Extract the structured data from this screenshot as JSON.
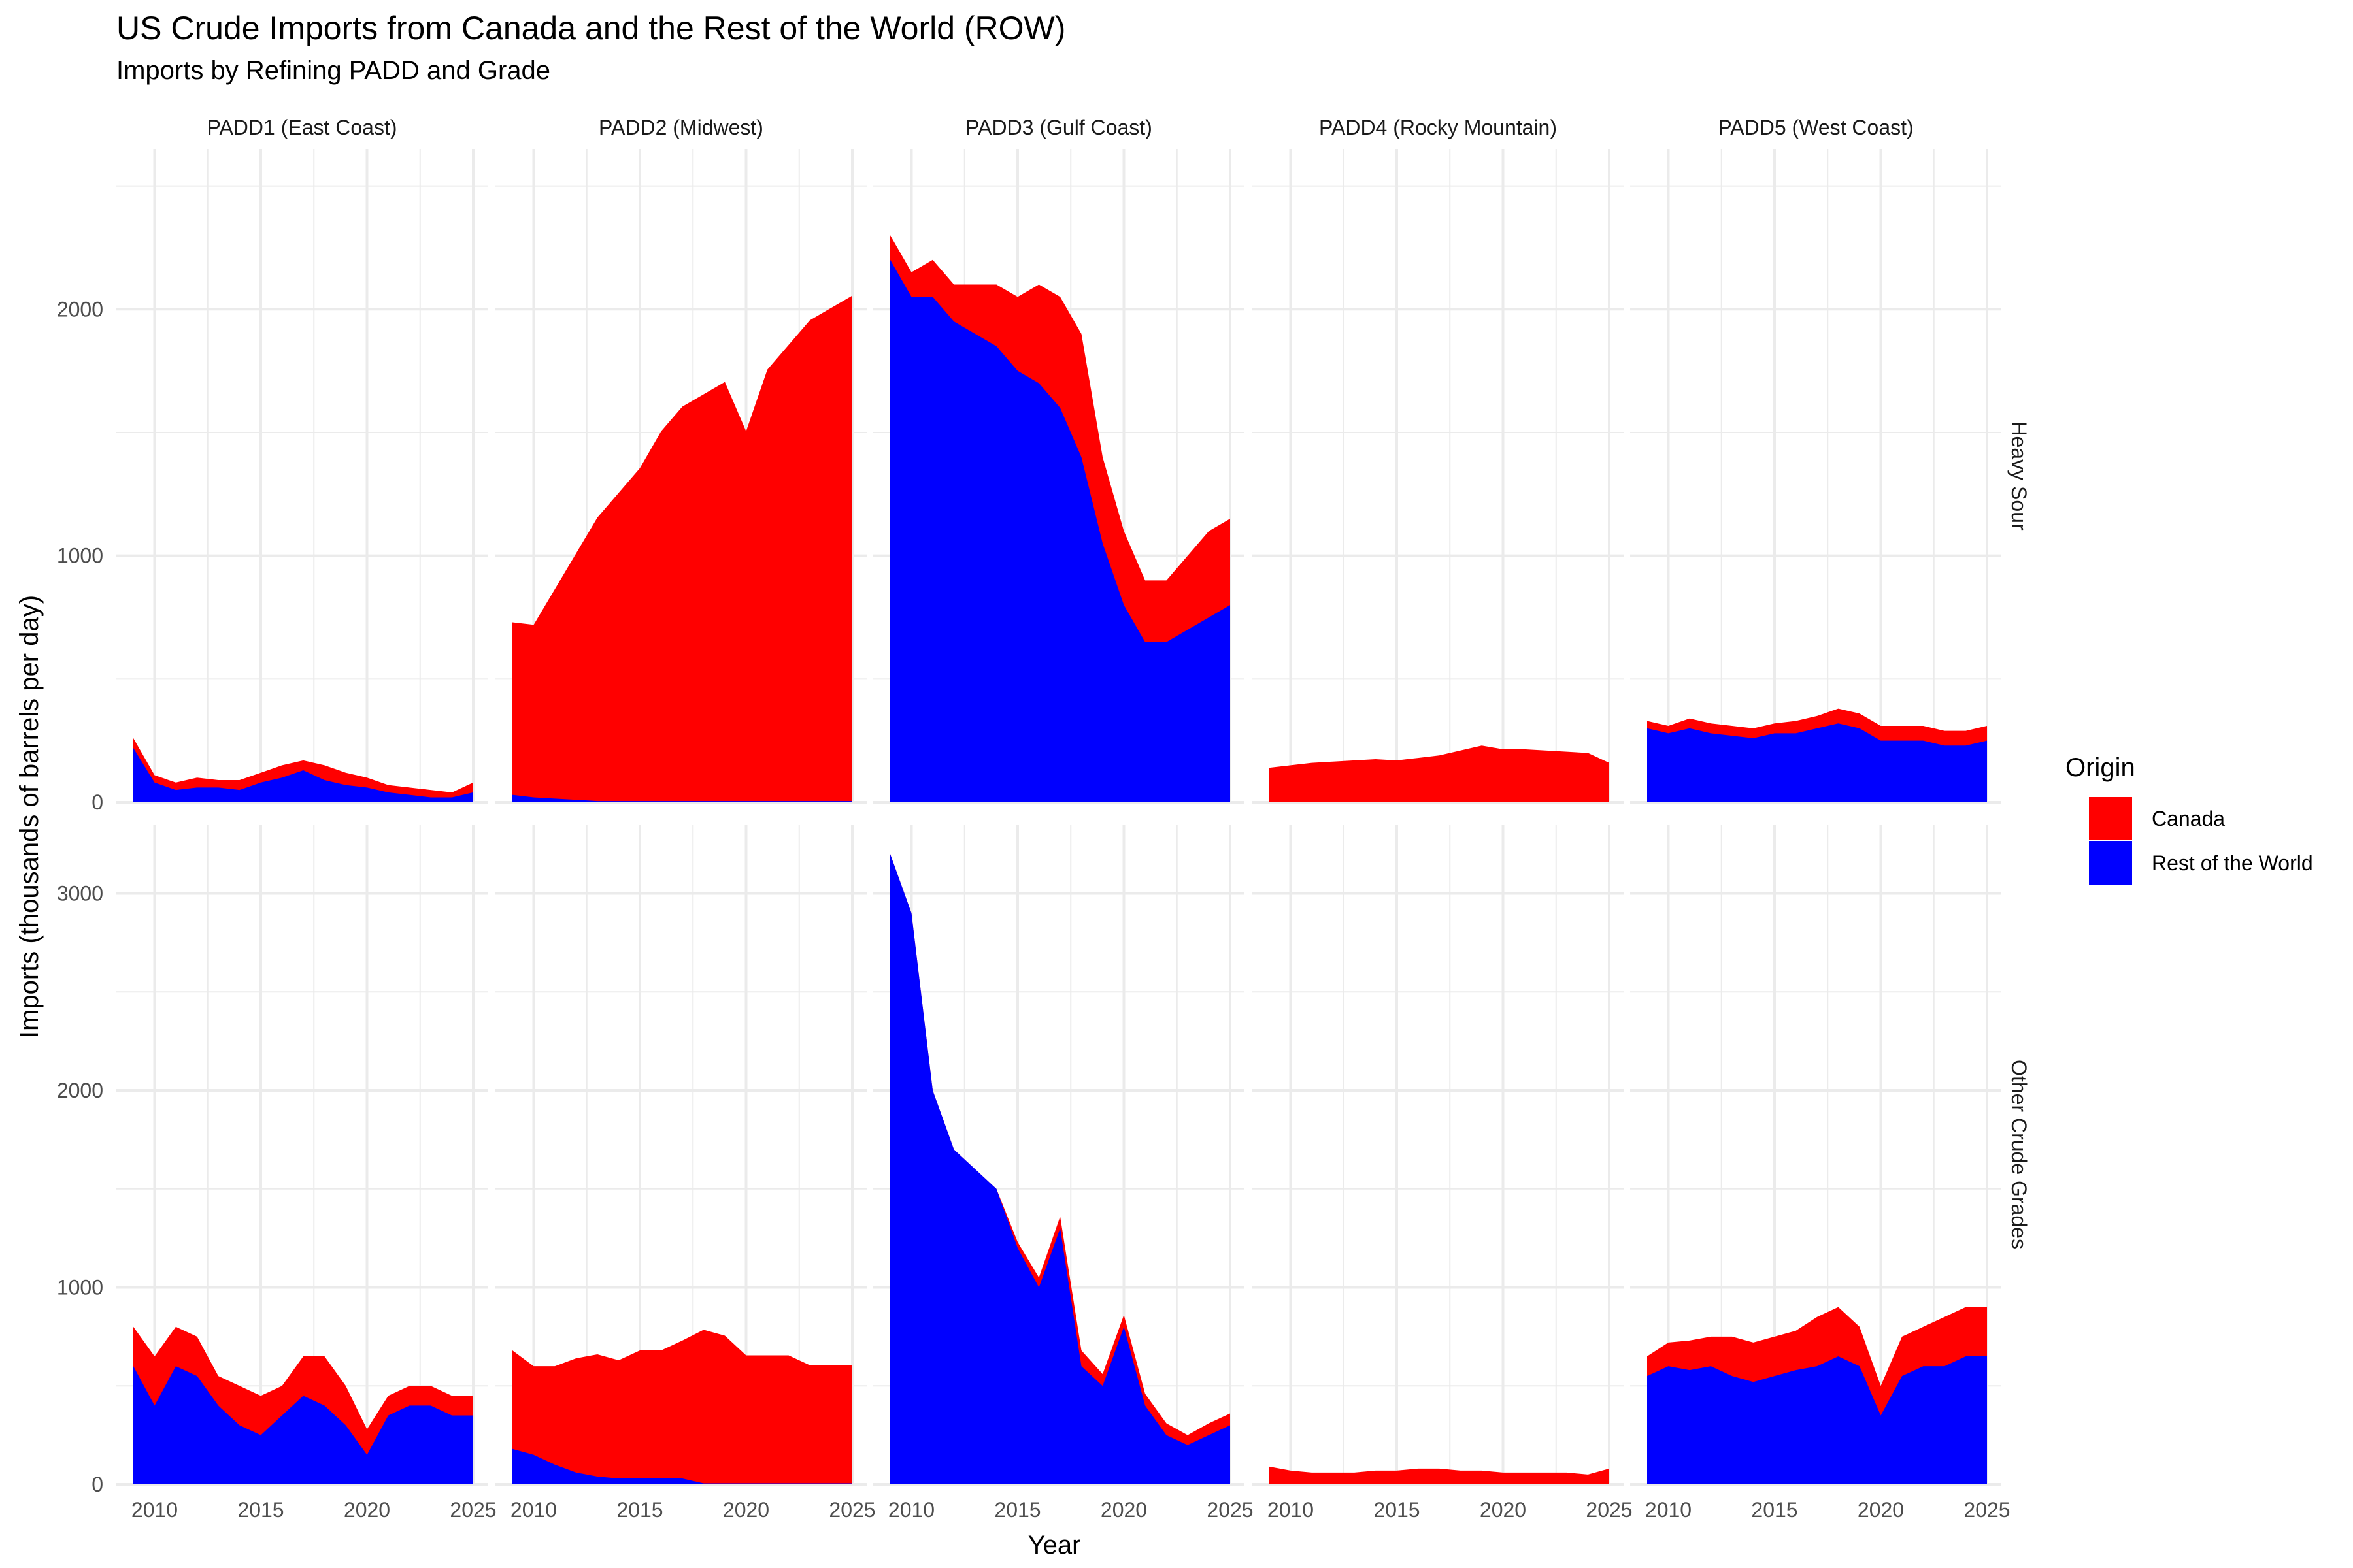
{
  "chart_data": {
    "type": "area",
    "stacked": true,
    "title": "US Crude Imports from Canada and the Rest of the World (ROW)",
    "subtitle": "Imports by Refining PADD and Grade",
    "xlabel": "Year",
    "ylabel": "Imports (thousands of barrels per day)",
    "x_ticks": [
      "2010",
      "2015",
      "2020",
      "2025"
    ],
    "xlim": [
      2009,
      2025
    ],
    "facet_columns": [
      "PADD1 (East Coast)",
      "PADD2 (Midwest)",
      "PADD3 (Gulf Coast)",
      "PADD4 (Rocky Mountain)",
      "PADD5 (West Coast)"
    ],
    "facet_rows": [
      {
        "label": "Heavy Sour",
        "ylim": [
          0,
          2650
        ],
        "y_ticks": [
          0,
          1000,
          2000
        ]
      },
      {
        "label": "Other Crude Grades",
        "ylim": [
          0,
          3350
        ],
        "y_ticks": [
          0,
          1000,
          2000,
          3000
        ]
      }
    ],
    "legend": {
      "title": "Origin",
      "placement": "right",
      "entries": [
        {
          "name": "Canada",
          "color": "#FF0000"
        },
        {
          "name": "Rest of the World",
          "color": "#0000FF"
        }
      ]
    },
    "grid": true,
    "x": [
      2009,
      2010,
      2011,
      2012,
      2013,
      2014,
      2015,
      2016,
      2017,
      2018,
      2019,
      2020,
      2021,
      2022,
      2023,
      2024,
      2025
    ],
    "panels": [
      {
        "row": "Heavy Sour",
        "column": "PADD1 (East Coast)",
        "series": [
          {
            "name": "Canada",
            "values": [
              40,
              30,
              30,
              40,
              30,
              40,
              40,
              50,
              40,
              60,
              50,
              40,
              30,
              30,
              30,
              20,
              40
            ]
          },
          {
            "name": "Rest of the World",
            "values": [
              220,
              80,
              50,
              60,
              60,
              50,
              80,
              100,
              130,
              90,
              70,
              60,
              40,
              30,
              20,
              20,
              40
            ]
          }
        ]
      },
      {
        "row": "Heavy Sour",
        "column": "PADD2 (Midwest)",
        "series": [
          {
            "name": "Canada",
            "values": [
              700,
              700,
              850,
              1000,
              1150,
              1250,
              1350,
              1500,
              1600,
              1650,
              1700,
              1500,
              1750,
              1850,
              1950,
              2000,
              2050
            ]
          },
          {
            "name": "Rest of the World",
            "values": [
              30,
              20,
              15,
              10,
              5,
              5,
              5,
              5,
              5,
              5,
              5,
              5,
              5,
              5,
              5,
              5,
              5
            ]
          }
        ]
      },
      {
        "row": "Heavy Sour",
        "column": "PADD3 (Gulf Coast)",
        "series": [
          {
            "name": "Canada",
            "values": [
              100,
              100,
              150,
              150,
              200,
              250,
              300,
              400,
              450,
              500,
              350,
              300,
              250,
              250,
              300,
              350,
              350
            ]
          },
          {
            "name": "Rest of the World",
            "values": [
              2200,
              2050,
              2050,
              1950,
              1900,
              1850,
              1750,
              1700,
              1600,
              1400,
              1050,
              800,
              650,
              650,
              700,
              750,
              800
            ]
          }
        ]
      },
      {
        "row": "Heavy Sour",
        "column": "PADD4 (Rocky Mountain)",
        "series": [
          {
            "name": "Canada",
            "values": [
              140,
              150,
              160,
              165,
              170,
              175,
              170,
              180,
              190,
              210,
              230,
              215,
              215,
              210,
              205,
              200,
              160
            ]
          },
          {
            "name": "Rest of the World",
            "values": [
              0,
              0,
              0,
              0,
              0,
              0,
              0,
              0,
              0,
              0,
              0,
              0,
              0,
              0,
              0,
              0,
              0
            ]
          }
        ]
      },
      {
        "row": "Heavy Sour",
        "column": "PADD5 (West Coast)",
        "series": [
          {
            "name": "Canada",
            "values": [
              30,
              30,
              40,
              40,
              40,
              40,
              40,
              50,
              50,
              60,
              60,
              60,
              60,
              60,
              60,
              60,
              60
            ]
          },
          {
            "name": "Rest of the World",
            "values": [
              300,
              280,
              300,
              280,
              270,
              260,
              280,
              280,
              300,
              320,
              300,
              250,
              250,
              250,
              230,
              230,
              250
            ]
          }
        ]
      },
      {
        "row": "Other Crude Grades",
        "column": "PADD1 (East Coast)",
        "series": [
          {
            "name": "Canada",
            "values": [
              200,
              250,
              200,
              200,
              150,
              200,
              200,
              150,
              200,
              250,
              200,
              130,
              100,
              100,
              100,
              100,
              100
            ]
          },
          {
            "name": "Rest of the World",
            "values": [
              600,
              400,
              600,
              550,
              400,
              300,
              250,
              350,
              450,
              400,
              300,
              150,
              350,
              400,
              400,
              350,
              350
            ]
          }
        ]
      },
      {
        "row": "Other Crude Grades",
        "column": "PADD2 (Midwest)",
        "series": [
          {
            "name": "Canada",
            "values": [
              500,
              450,
              500,
              580,
              620,
              600,
              650,
              650,
              700,
              780,
              750,
              650,
              650,
              650,
              600,
              600,
              600
            ]
          },
          {
            "name": "Rest of the World",
            "values": [
              180,
              150,
              100,
              60,
              40,
              30,
              30,
              30,
              30,
              5,
              5,
              5,
              5,
              5,
              5,
              5,
              5
            ]
          }
        ]
      },
      {
        "row": "Other Crude Grades",
        "column": "PADD3 (Gulf Coast)",
        "series": [
          {
            "name": "Canada",
            "values": [
              0,
              0,
              0,
              0,
              0,
              0,
              30,
              50,
              60,
              80,
              60,
              60,
              60,
              60,
              50,
              60,
              60
            ]
          },
          {
            "name": "Rest of the World",
            "values": [
              3200,
              2900,
              2000,
              1700,
              1600,
              1500,
              1200,
              1000,
              1300,
              600,
              500,
              800,
              400,
              250,
              200,
              250,
              300
            ]
          }
        ]
      },
      {
        "row": "Other Crude Grades",
        "column": "PADD4 (Rocky Mountain)",
        "series": [
          {
            "name": "Canada",
            "values": [
              90,
              70,
              60,
              60,
              60,
              70,
              70,
              80,
              80,
              70,
              70,
              60,
              60,
              60,
              60,
              50,
              80
            ]
          },
          {
            "name": "Rest of the World",
            "values": [
              0,
              0,
              0,
              0,
              0,
              0,
              0,
              0,
              0,
              0,
              0,
              0,
              0,
              0,
              0,
              0,
              0
            ]
          }
        ]
      },
      {
        "row": "Other Crude Grades",
        "column": "PADD5 (West Coast)",
        "series": [
          {
            "name": "Canada",
            "values": [
              100,
              120,
              150,
              150,
              200,
              200,
              200,
              200,
              250,
              250,
              200,
              150,
              200,
              200,
              250,
              250,
              250
            ]
          },
          {
            "name": "Rest of the World",
            "values": [
              550,
              600,
              580,
              600,
              550,
              520,
              550,
              580,
              600,
              650,
              600,
              350,
              550,
              600,
              600,
              650,
              650
            ]
          }
        ]
      }
    ]
  }
}
